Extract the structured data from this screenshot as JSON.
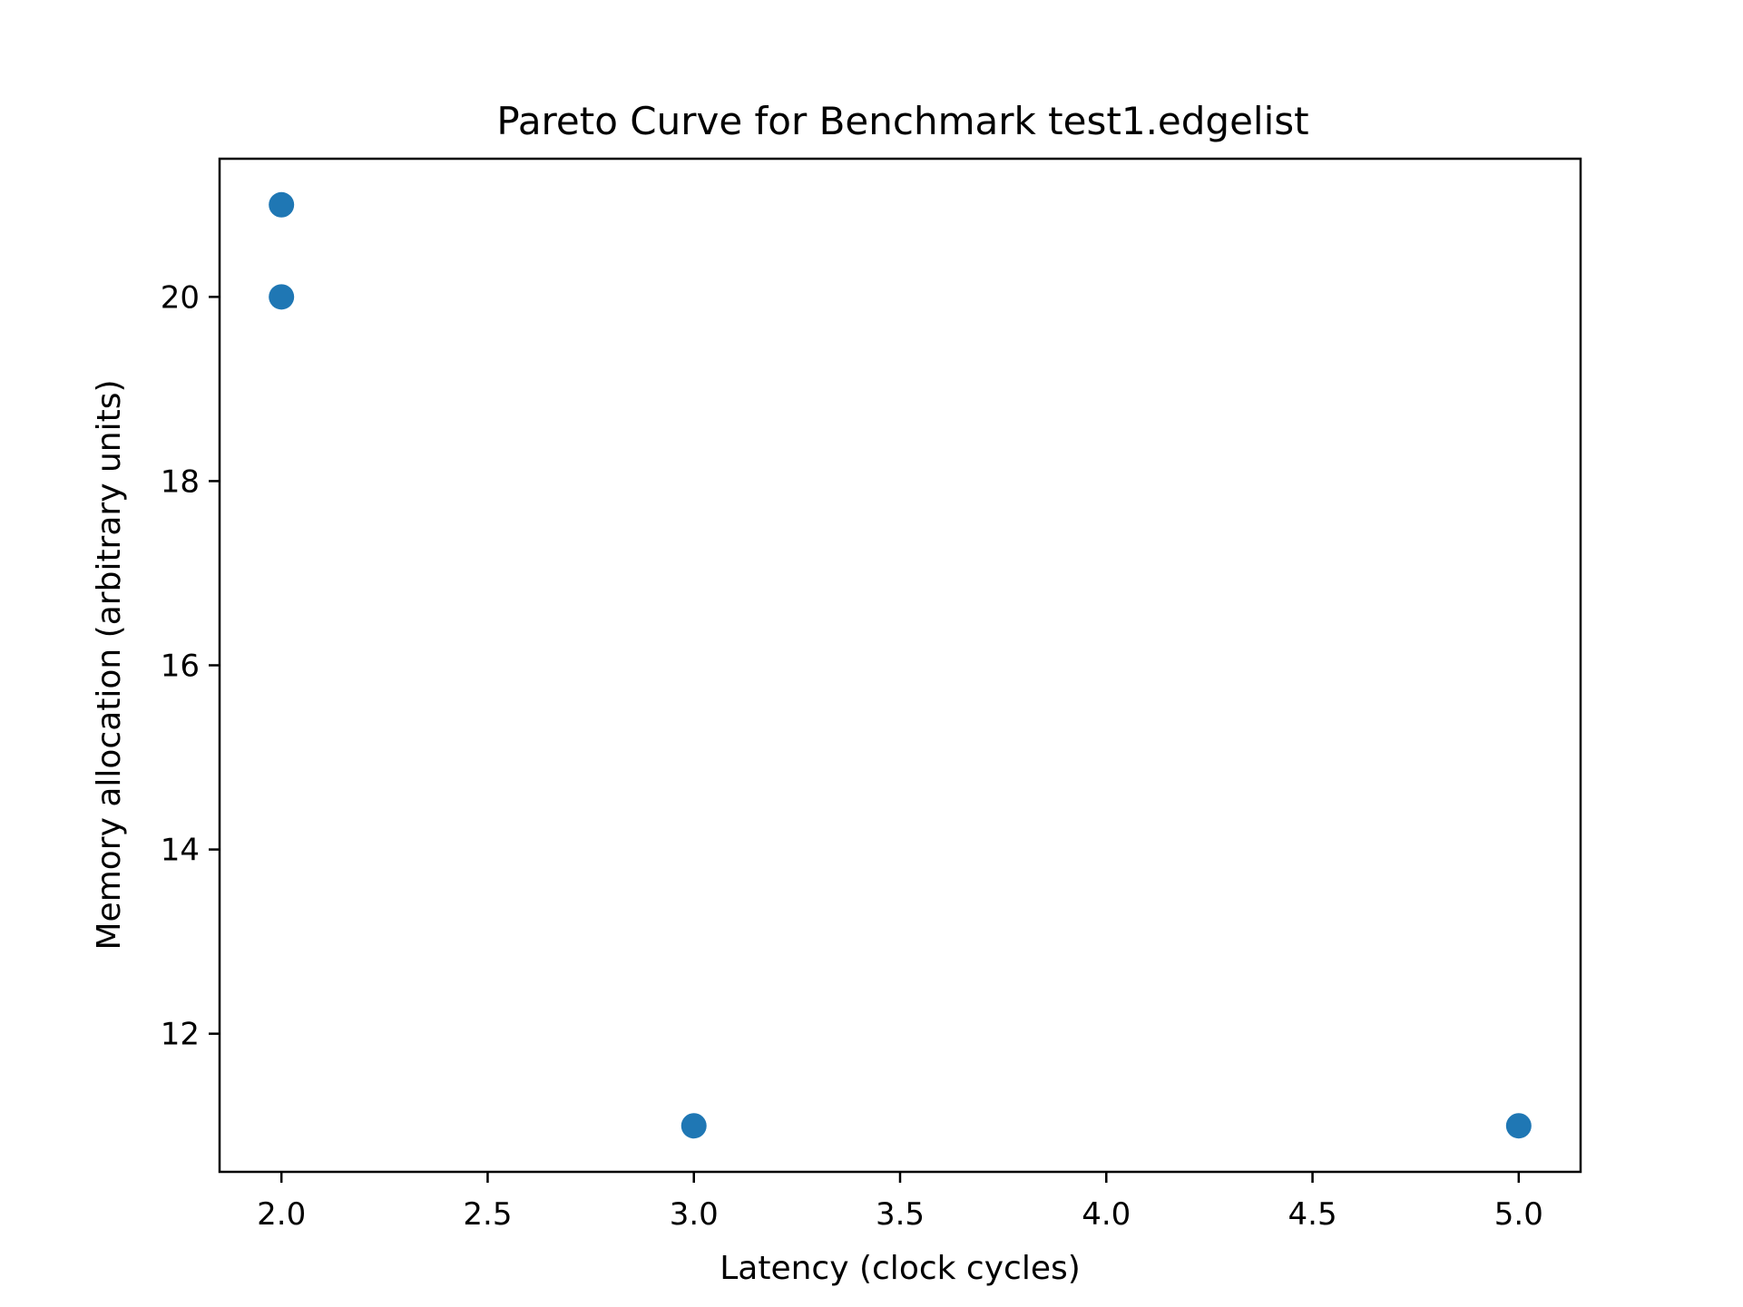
{
  "chart_data": {
    "type": "scatter",
    "title": "Pareto Curve for Benchmark test1.edgelist",
    "xlabel": "Latency (clock cycles)",
    "ylabel": "Memory allocation (arbitrary units)",
    "xlim": [
      1.85,
      5.15
    ],
    "ylim": [
      10.5,
      21.5
    ],
    "xticks": [
      2.0,
      2.5,
      3.0,
      3.5,
      4.0,
      4.5,
      5.0
    ],
    "xtick_labels": [
      "2.0",
      "2.5",
      "3.0",
      "3.5",
      "4.0",
      "4.5",
      "5.0"
    ],
    "yticks": [
      12,
      14,
      16,
      18,
      20
    ],
    "ytick_labels": [
      "12",
      "14",
      "16",
      "18",
      "20"
    ],
    "grid": false,
    "legend": "none",
    "point_color": "#1f77b4",
    "points": [
      {
        "x": 2,
        "y": 21
      },
      {
        "x": 2,
        "y": 20
      },
      {
        "x": 3,
        "y": 11
      },
      {
        "x": 5,
        "y": 11
      }
    ]
  }
}
